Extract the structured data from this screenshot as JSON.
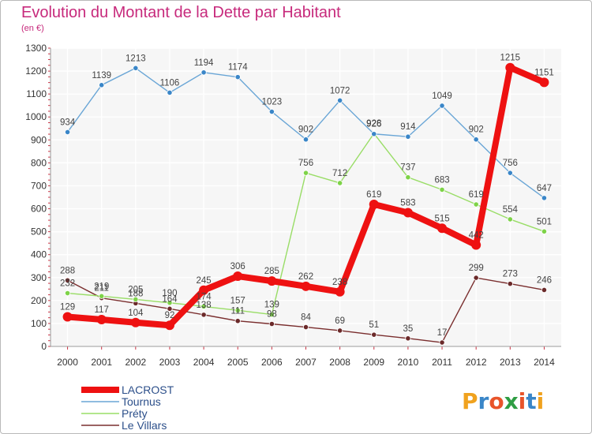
{
  "title": "Evolution du Montant de la Dette par Habitant",
  "subtitle": "(en €)",
  "logo": {
    "text": "Proxiti",
    "letters": [
      "P",
      "r",
      "o",
      "x",
      "i",
      "t",
      "i"
    ],
    "colors": [
      "#f0a21e",
      "#3a86c8",
      "#e8542a",
      "#2f9e44",
      "#e8542a",
      "#3a86c8",
      "#f0a21e"
    ]
  },
  "chart_data": {
    "type": "line",
    "title": "Evolution du Montant de la Dette par Habitant",
    "subtitle": "(en €)",
    "x": [
      2000,
      2001,
      2002,
      2003,
      2004,
      2005,
      2006,
      2007,
      2008,
      2009,
      2010,
      2011,
      2012,
      2013,
      2014
    ],
    "ylim": [
      0,
      1300
    ],
    "yticks": [
      0,
      100,
      200,
      300,
      400,
      500,
      600,
      700,
      800,
      900,
      1000,
      1100,
      1200,
      1300
    ],
    "grid": true,
    "legend_position": "bottom-left",
    "series": [
      {
        "name": "Le Villars",
        "color": "#7a2e2e",
        "marker": "#6b2a2a",
        "values": [
          288,
          211,
          188,
          164,
          138,
          111,
          98,
          84,
          69,
          51,
          35,
          17,
          299,
          273,
          246
        ]
      },
      {
        "name": "Préty",
        "color": "#99dd66",
        "marker": "#7ed348",
        "values": [
          232,
          219,
          205,
          190,
          174,
          157,
          139,
          756,
          712,
          928,
          737,
          683,
          619,
          554,
          501
        ]
      },
      {
        "name": "Tournus",
        "color": "#6aa6d6",
        "marker": "#3a86c8",
        "values": [
          934,
          1139,
          1213,
          1106,
          1194,
          1174,
          1023,
          902,
          1072,
          926,
          914,
          1049,
          902,
          756,
          647
        ]
      },
      {
        "name": "LACROST",
        "color": "#ee1111",
        "marker": "#ee1111",
        "values": [
          129,
          117,
          104,
          92,
          245,
          306,
          285,
          262,
          238,
          619,
          583,
          515,
          442,
          1215,
          1151
        ]
      }
    ],
    "legend": [
      "LACROST",
      "Tournus",
      "Préty",
      "Le Villars"
    ]
  }
}
